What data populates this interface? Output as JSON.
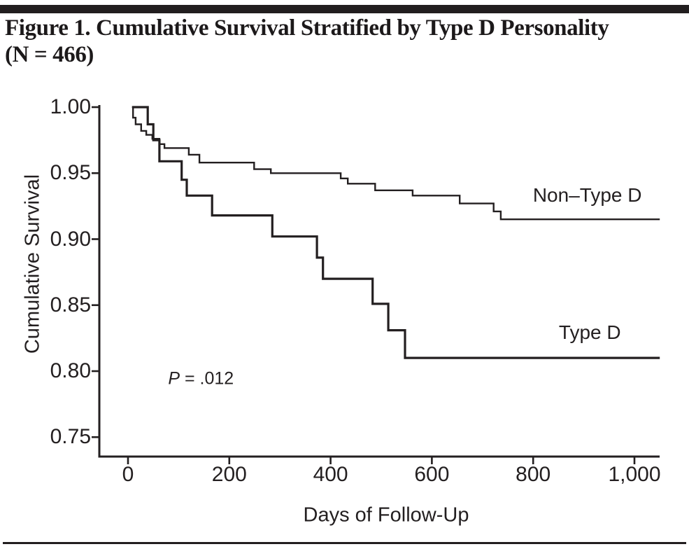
{
  "figure": {
    "title_line1": "Figure 1. Cumulative Survival Stratified by Type D Personality",
    "title_line2": "(N = 466)"
  },
  "chart_data": {
    "type": "line",
    "variant": "kaplan_meier_step",
    "title": "Figure 1. Cumulative Survival Stratified by Type D Personality (N = 466)",
    "xlabel": "Days of Follow-Up",
    "ylabel": "Cumulative Survival",
    "x_ticks": [
      {
        "value": 0,
        "label": "0"
      },
      {
        "value": 200,
        "label": "200"
      },
      {
        "value": 400,
        "label": "400"
      },
      {
        "value": 600,
        "label": "600"
      },
      {
        "value": 800,
        "label": "800"
      },
      {
        "value": 1000,
        "label": "1,000"
      }
    ],
    "y_ticks": [
      {
        "value": 1.0,
        "label": "1.00"
      },
      {
        "value": 0.95,
        "label": "0.95"
      },
      {
        "value": 0.9,
        "label": "0.90"
      },
      {
        "value": 0.85,
        "label": "0.85"
      },
      {
        "value": 0.8,
        "label": "0.80"
      },
      {
        "value": 0.75,
        "label": "0.75"
      }
    ],
    "xlim": [
      0,
      1050
    ],
    "ylim": [
      0.735,
      1.005
    ],
    "end_day": 1050,
    "grid": false,
    "legend_position": "inline-labels",
    "line_color": "#231f20",
    "annotation": {
      "p_italic": "P",
      "rest": " = .012",
      "at_day": 144,
      "at_survival": 0.794
    },
    "series": [
      {
        "name": "Non–Type D",
        "stroke_width": 2.4,
        "label_at_day": 907,
        "label_at_survival": 0.933,
        "points": [
          [
            8,
            1.0
          ],
          [
            10,
            0.992
          ],
          [
            15,
            0.987
          ],
          [
            26,
            0.982
          ],
          [
            36,
            0.979
          ],
          [
            48,
            0.976
          ],
          [
            62,
            0.972
          ],
          [
            72,
            0.969
          ],
          [
            120,
            0.964
          ],
          [
            141,
            0.958
          ],
          [
            249,
            0.953
          ],
          [
            282,
            0.95
          ],
          [
            420,
            0.946
          ],
          [
            434,
            0.942
          ],
          [
            488,
            0.937
          ],
          [
            562,
            0.933
          ],
          [
            655,
            0.927
          ],
          [
            722,
            0.921
          ],
          [
            736,
            0.915
          ]
        ]
      },
      {
        "name": "Type D",
        "stroke_width": 3.2,
        "label_at_day": 912,
        "label_at_survival": 0.829,
        "points": [
          [
            8,
            1.0
          ],
          [
            39,
            0.987
          ],
          [
            50,
            0.975
          ],
          [
            62,
            0.959
          ],
          [
            106,
            0.945
          ],
          [
            116,
            0.933
          ],
          [
            166,
            0.918
          ],
          [
            285,
            0.902
          ],
          [
            373,
            0.886
          ],
          [
            385,
            0.87
          ],
          [
            483,
            0.851
          ],
          [
            514,
            0.831
          ],
          [
            547,
            0.81
          ]
        ]
      }
    ]
  }
}
